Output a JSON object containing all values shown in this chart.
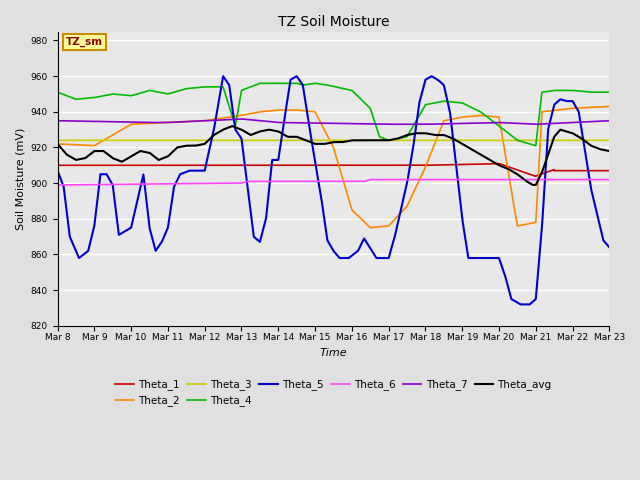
{
  "title": "TZ Soil Moisture",
  "xlabel": "Time",
  "ylabel": "Soil Moisture (mV)",
  "ylim": [
    820,
    985
  ],
  "xlim": [
    0,
    360
  ],
  "background_color": "#e0e0e0",
  "plot_bg_color": "#e8e8e8",
  "grid_color": "white",
  "series": {
    "Theta_1": {
      "color": "#cc0000",
      "lw": 1.2
    },
    "Theta_2": {
      "color": "#ff8800",
      "lw": 1.2
    },
    "Theta_3": {
      "color": "#cccc00",
      "lw": 1.2
    },
    "Theta_4": {
      "color": "#00bb00",
      "lw": 1.2
    },
    "Theta_5": {
      "color": "#0000cc",
      "lw": 1.5
    },
    "Theta_6": {
      "color": "#ff44ff",
      "lw": 1.2
    },
    "Theta_7": {
      "color": "#8800cc",
      "lw": 1.2
    },
    "Theta_avg": {
      "color": "#000000",
      "lw": 1.5
    }
  },
  "xtick_labels": [
    "Mar 8",
    "Mar 9",
    "Mar 10",
    "Mar 11",
    "Mar 12",
    "Mar 13",
    "Mar 14",
    "Mar 15",
    "Mar 16",
    "Mar 17",
    "Mar 18",
    "Mar 19",
    "Mar 20",
    "Mar 21",
    "Mar 22",
    "Mar 23"
  ],
  "xtick_positions": [
    0,
    24,
    48,
    72,
    96,
    120,
    144,
    168,
    192,
    216,
    240,
    264,
    288,
    312,
    336,
    360
  ],
  "annotation_text": "TZ_sm",
  "annotation_bg": "#ffff99",
  "annotation_border": "#cc8800",
  "legend_order": [
    "Theta_1",
    "Theta_2",
    "Theta_3",
    "Theta_4",
    "Theta_5",
    "Theta_6",
    "Theta_7",
    "Theta_avg"
  ]
}
